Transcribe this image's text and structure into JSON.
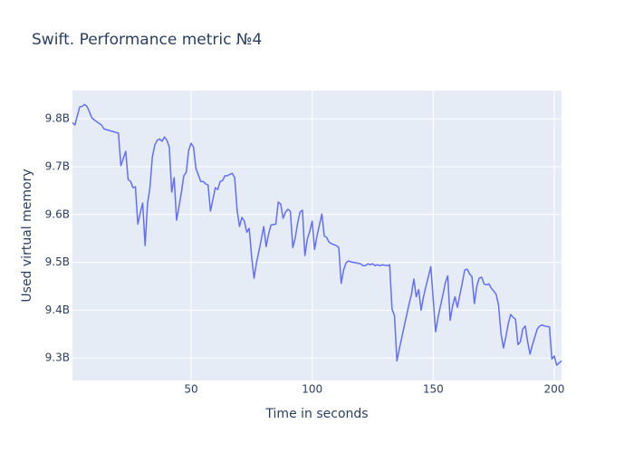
{
  "chart_data": {
    "type": "line",
    "title": "Swift. Performance metric №4",
    "xlabel": "Time in seconds",
    "ylabel": "Used virtual memory",
    "xlim": [
      1,
      203
    ],
    "xticks": [
      50,
      100,
      150,
      200
    ],
    "ylim": [
      9253000000.0,
      9859000000.0
    ],
    "yticks": [
      {
        "value": 9300000000.0,
        "label": "9.3B"
      },
      {
        "value": 9400000000.0,
        "label": "9.4B"
      },
      {
        "value": 9500000000.0,
        "label": "9.5B"
      },
      {
        "value": 9600000000.0,
        "label": "9.6B"
      },
      {
        "value": 9700000000.0,
        "label": "9.7B"
      },
      {
        "value": 9800000000.0,
        "label": "9.8B"
      }
    ],
    "grid": true,
    "x": [
      1,
      2,
      4,
      5,
      6,
      7,
      8,
      9,
      11,
      13,
      14,
      20,
      21,
      22,
      23,
      24,
      25,
      26,
      27,
      28,
      29,
      30,
      31,
      32,
      33,
      34,
      35,
      36,
      37,
      38,
      39,
      40,
      41,
      42,
      43,
      44,
      45,
      46,
      47,
      48,
      49,
      50,
      51,
      52,
      53,
      54,
      55,
      56,
      57,
      58,
      59,
      60,
      61,
      62,
      63,
      64,
      65,
      66,
      67,
      68,
      69,
      70,
      71,
      72,
      73,
      74,
      75,
      76,
      77,
      78,
      79,
      80,
      81,
      82,
      83,
      85,
      86,
      87,
      88,
      89,
      90,
      91,
      92,
      93,
      94,
      95,
      96,
      97,
      98,
      99,
      100,
      101,
      102,
      103,
      104,
      105,
      106,
      107,
      108,
      110,
      111,
      112,
      113,
      114,
      115,
      116,
      118,
      120,
      121,
      122,
      123,
      124,
      125,
      126,
      127,
      128,
      129,
      131,
      132,
      133,
      134,
      135,
      136,
      138,
      140,
      141,
      142,
      143,
      144,
      145,
      146,
      147,
      148,
      149,
      151,
      152,
      153,
      154,
      155,
      156,
      157,
      158,
      159,
      160,
      161,
      162,
      163,
      164,
      165,
      166,
      167,
      168,
      169,
      170,
      171,
      172,
      173,
      174,
      175,
      176,
      177,
      178,
      179,
      180,
      181,
      182,
      183,
      184,
      185,
      186,
      187,
      188,
      189,
      190,
      191,
      193,
      194,
      195,
      196,
      198,
      199,
      200,
      201,
      203
    ],
    "series": [
      {
        "name": "Used virtual memory",
        "color": "#636efa",
        "values": [
          9792000000.0,
          9787000000.0,
          9825000000.0,
          9826000000.0,
          9830000000.0,
          9826000000.0,
          9815000000.0,
          9802000000.0,
          9794000000.0,
          9787000000.0,
          9779000000.0,
          9770000000.0,
          9702000000.0,
          9717000000.0,
          9732000000.0,
          9673000000.0,
          9669000000.0,
          9656000000.0,
          9658000000.0,
          9580000000.0,
          9603000000.0,
          9624000000.0,
          9535000000.0,
          9622000000.0,
          9656000000.0,
          9720000000.0,
          9745000000.0,
          9755000000.0,
          9758000000.0,
          9753000000.0,
          9762000000.0,
          9755000000.0,
          9741000000.0,
          9647000000.0,
          9677000000.0,
          9588000000.0,
          9616000000.0,
          9647000000.0,
          9681000000.0,
          9688000000.0,
          9734000000.0,
          9749000000.0,
          9741000000.0,
          9696000000.0,
          9683000000.0,
          9669000000.0,
          9669000000.0,
          9664000000.0,
          9662000000.0,
          9607000000.0,
          9631000000.0,
          9656000000.0,
          9652000000.0,
          9669000000.0,
          9671000000.0,
          9681000000.0,
          9681000000.0,
          9684000000.0,
          9686000000.0,
          9677000000.0,
          9609000000.0,
          9575000000.0,
          9594000000.0,
          9586000000.0,
          9563000000.0,
          9571000000.0,
          9512000000.0,
          9467000000.0,
          9499000000.0,
          9523000000.0,
          9548000000.0,
          9575000000.0,
          9533000000.0,
          9559000000.0,
          9578000000.0,
          9580000000.0,
          9626000000.0,
          9622000000.0,
          9592000000.0,
          9605000000.0,
          9611000000.0,
          9607000000.0,
          9531000000.0,
          9551000000.0,
          9582000000.0,
          9605000000.0,
          9609000000.0,
          9514000000.0,
          9548000000.0,
          9565000000.0,
          9586000000.0,
          9527000000.0,
          9555000000.0,
          9578000000.0,
          9601000000.0,
          9555000000.0,
          9552000000.0,
          9542000000.0,
          9539000000.0,
          9535000000.0,
          9531000000.0,
          9456000000.0,
          9484000000.0,
          9499000000.0,
          9503000000.0,
          9501000000.0,
          9499000000.0,
          9497000000.0,
          9493000000.0,
          9493000000.0,
          9497000000.0,
          9495000000.0,
          9497000000.0,
          9493000000.0,
          9495000000.0,
          9493000000.0,
          9495000000.0,
          9493000000.0,
          9495000000.0,
          9402000000.0,
          9389000000.0,
          9294000000.0,
          9319000000.0,
          9366000000.0,
          9412000000.0,
          9433000000.0,
          9465000000.0,
          9428000000.0,
          9443000000.0,
          9400000000.0,
          9428000000.0,
          9450000000.0,
          9470000000.0,
          9491000000.0,
          9355000000.0,
          9385000000.0,
          9409000000.0,
          9432000000.0,
          9457000000.0,
          9472000000.0,
          9379000000.0,
          9409000000.0,
          9428000000.0,
          9406000000.0,
          9432000000.0,
          9457000000.0,
          9484000000.0,
          9486000000.0,
          9476000000.0,
          9470000000.0,
          9414000000.0,
          9450000000.0,
          9467000000.0,
          9469000000.0,
          9455000000.0,
          9453000000.0,
          9455000000.0,
          9446000000.0,
          9440000000.0,
          9433000000.0,
          9410000000.0,
          9351000000.0,
          9321000000.0,
          9344000000.0,
          9372000000.0,
          9391000000.0,
          9385000000.0,
          9381000000.0,
          9328000000.0,
          9334000000.0,
          9361000000.0,
          9367000000.0,
          9334000000.0,
          9308000000.0,
          9328000000.0,
          9361000000.0,
          9367000000.0,
          9369000000.0,
          9367000000.0,
          9365000000.0,
          9298000000.0,
          9304000000.0,
          9285000000.0,
          9294000000.0
        ]
      }
    ]
  }
}
